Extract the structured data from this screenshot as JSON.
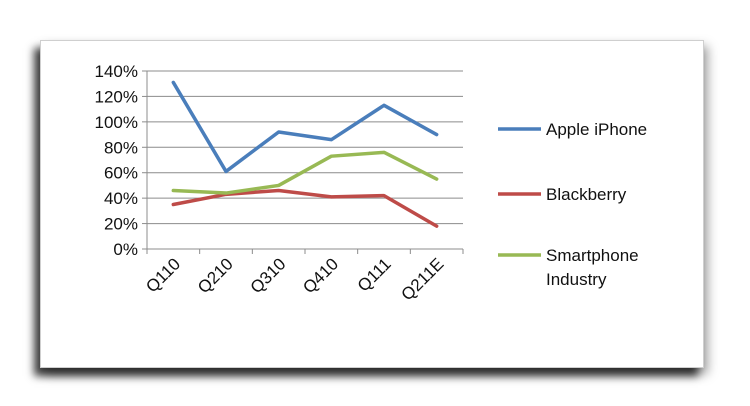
{
  "chart_data": {
    "type": "line",
    "categories": [
      "Q110",
      "Q210",
      "Q310",
      "Q410",
      "Q111",
      "Q211E"
    ],
    "ylim": [
      0,
      140
    ],
    "yticks": [
      "0%",
      "20%",
      "40%",
      "60%",
      "80%",
      "100%",
      "120%",
      "140%"
    ],
    "grid": true,
    "legend_position": "right",
    "series": [
      {
        "name": "Apple iPhone",
        "color": "#4a7ebb",
        "values": [
          131,
          61,
          92,
          86,
          113,
          90
        ]
      },
      {
        "name": "Blackberry",
        "color": "#be4b48",
        "values": [
          35,
          43,
          46,
          41,
          42,
          18
        ]
      },
      {
        "name": "Smartphone Industry",
        "color": "#98b954",
        "values": [
          46,
          44,
          50,
          73,
          76,
          55
        ]
      }
    ]
  }
}
